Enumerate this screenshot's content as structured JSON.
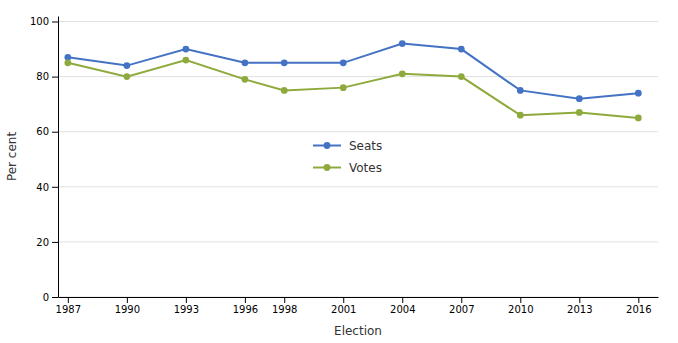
{
  "chart_data": {
    "type": "line",
    "x": [
      1987,
      1990,
      1993,
      1996,
      1998,
      2001,
      2004,
      2007,
      2010,
      2013,
      2016
    ],
    "series": [
      {
        "name": "Seats",
        "color": "#4472C4",
        "values": [
          87,
          84,
          90,
          85,
          85,
          85,
          92,
          90,
          75,
          72,
          74
        ]
      },
      {
        "name": "Votes",
        "color": "#8faa3c",
        "values": [
          85,
          80,
          86,
          79,
          75,
          76,
          81,
          80,
          66,
          67,
          65
        ]
      }
    ],
    "xlabel": "Election",
    "ylabel": "Per cent",
    "xlim": [
      1986.5,
      2017.0
    ],
    "ylim": [
      0,
      102
    ],
    "xticks": [
      1987,
      1990,
      1993,
      1996,
      1998,
      2001,
      2004,
      2007,
      2010,
      2013,
      2016
    ],
    "yticks": [
      0,
      20,
      40,
      60,
      80,
      100
    ],
    "grid": true,
    "legend": "center",
    "marker": "circle"
  }
}
